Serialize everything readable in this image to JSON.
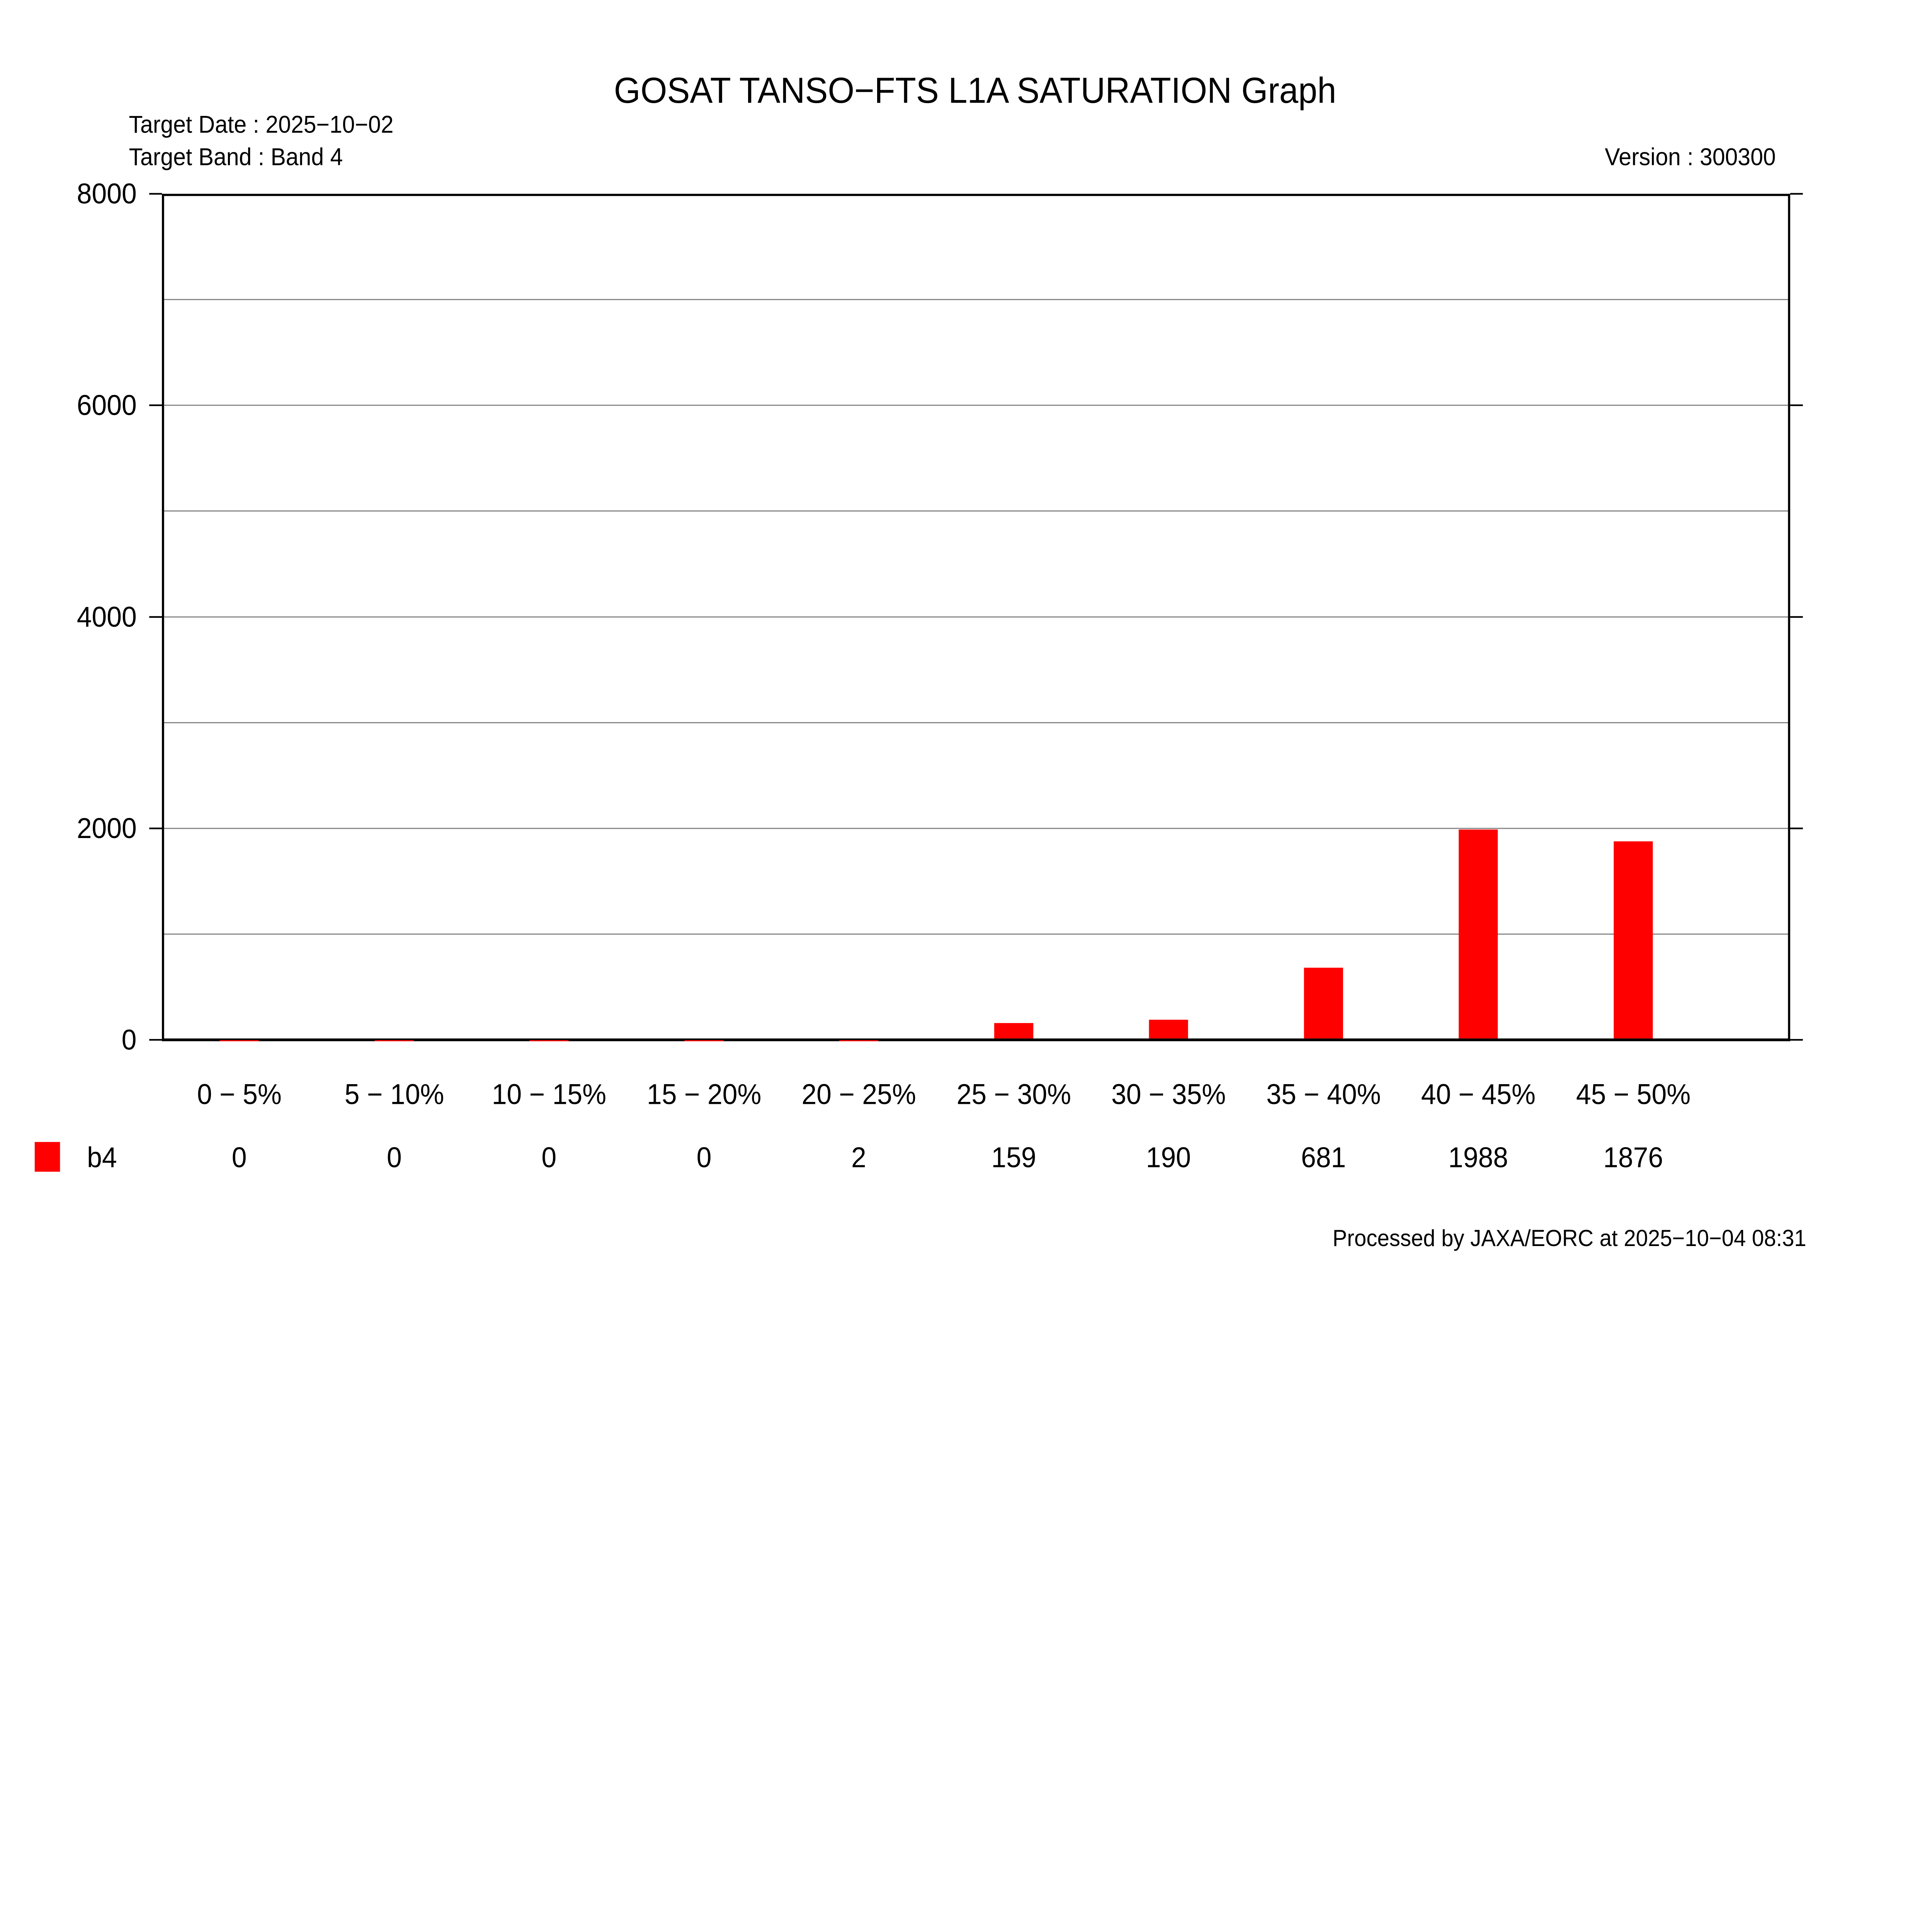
{
  "header": {
    "title": "GOSAT TANSO−FTS L1A SATURATION Graph",
    "target_date": "Target Date : 2025−10−02",
    "target_band": "Target Band : Band 4",
    "version": "Version : 300300"
  },
  "legend": {
    "series_label": "b4",
    "series_color": "#ff0000"
  },
  "footer": {
    "processed": "Processed by JAXA/EORC at 2025−10−04 08:31"
  },
  "chart_data": {
    "type": "bar",
    "title": "GOSAT TANSO−FTS L1A SATURATION Graph",
    "categories": [
      "0 −  5%",
      "5 − 10%",
      "10 − 15%",
      "15 − 20%",
      "20 − 25%",
      "25 − 30%",
      "30 − 35%",
      "35 − 40%",
      "40 − 45%",
      "45 − 50%"
    ],
    "series": [
      {
        "name": "b4",
        "color": "#ff0000",
        "values": [
          0,
          0,
          0,
          0,
          2,
          159,
          190,
          681,
          1988,
          1876
        ]
      }
    ],
    "xlabel": "",
    "ylabel": "",
    "ylim": [
      0,
      8000
    ],
    "ytick_values": [
      0,
      2000,
      4000,
      6000,
      8000
    ],
    "ytick_labels": [
      "0",
      "2000",
      "4000",
      "6000",
      "8000"
    ],
    "gridline_step": 1000,
    "gridline_color": "#808080",
    "grid": true,
    "legend_position": "bottom-left",
    "bar_color": "#ff0000",
    "frame_color": "#000000"
  }
}
